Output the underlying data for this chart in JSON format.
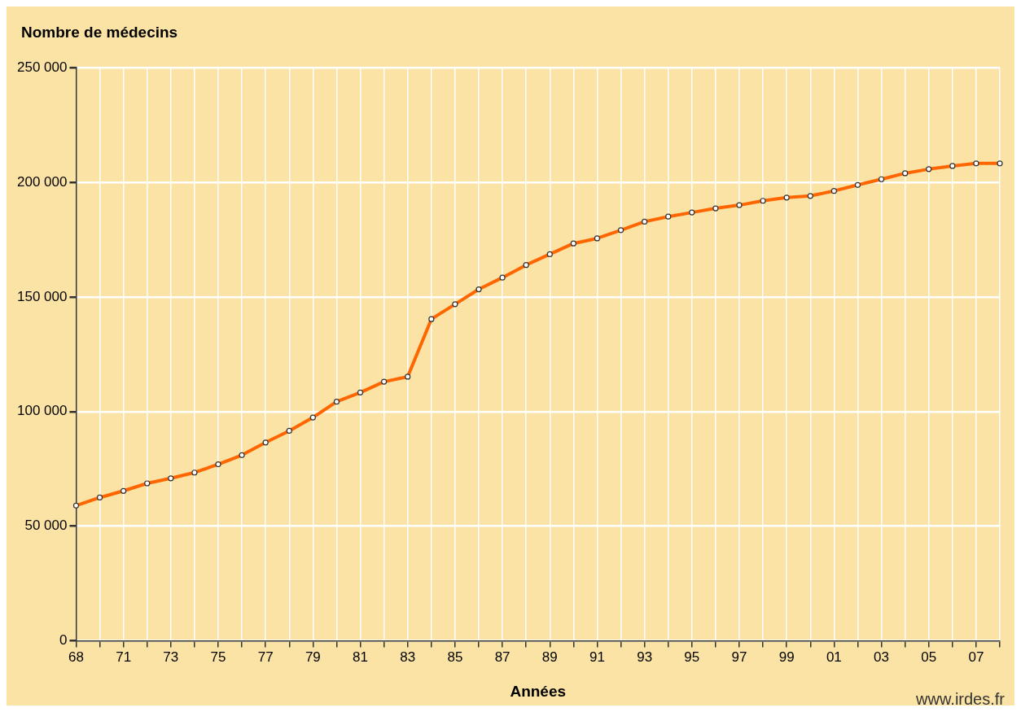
{
  "chart_data": {
    "type": "line",
    "ylabel": "Nombre de médecins",
    "xlabel": "Années",
    "categories": [
      "68",
      null,
      "71",
      null,
      "73",
      null,
      "75",
      null,
      "77",
      null,
      "79",
      null,
      "81",
      null,
      "83",
      null,
      "85",
      null,
      "87",
      null,
      "89",
      null,
      "91",
      null,
      "93",
      null,
      "95",
      null,
      "97",
      null,
      "99",
      null,
      "01",
      null,
      "03",
      null,
      "05",
      null,
      "07",
      null
    ],
    "series": [
      {
        "color": "#ff6600",
        "values": [
          59000,
          62500,
          65400,
          68700,
          70900,
          73400,
          77000,
          81000,
          86500,
          91600,
          97400,
          104300,
          108300,
          113000,
          115200,
          140300,
          146800,
          153300,
          158400,
          163900,
          168600,
          173300,
          175500,
          179100,
          182800,
          185000,
          186800,
          188600,
          190000,
          191900,
          193300,
          194000,
          196200,
          198800,
          201300,
          203900,
          205700,
          207100,
          208200,
          208200
        ]
      }
    ],
    "ylim": [
      0,
      250000
    ],
    "yticks": [
      {
        "value": 0,
        "label": "0"
      },
      {
        "value": 50000,
        "label": "50 000"
      },
      {
        "value": 100000,
        "label": "100 000"
      },
      {
        "value": 150000,
        "label": "150 000"
      },
      {
        "value": 200000,
        "label": "200 000"
      },
      {
        "value": 250000,
        "label": "250 000"
      }
    ],
    "grid": true,
    "marker": "circle",
    "line_style": "solid",
    "legend": false,
    "annotations": [
      "www.irdes.fr"
    ]
  }
}
